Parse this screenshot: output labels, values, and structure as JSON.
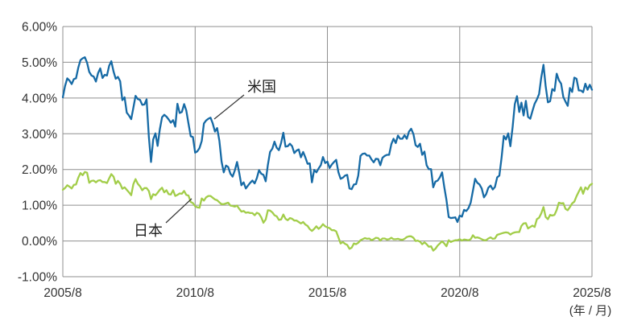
{
  "chart_data": {
    "type": "line",
    "title": "",
    "x_interval": "monthly",
    "x_range": [
      "2005/8",
      "2025/8"
    ],
    "x_ticks": [
      "2005/8",
      "2010/8",
      "2015/8",
      "2020/8",
      "2025/8"
    ],
    "x_axis_unit": "(年 / 月)",
    "y_ticks": [
      "6.00%",
      "5.00%",
      "4.00%",
      "3.00%",
      "2.00%",
      "1.00%",
      "0.00%",
      "-1.00%"
    ],
    "ylim": [
      -1,
      6
    ],
    "grid": true,
    "grid_color": "#8f8f8f",
    "series": [
      {
        "name": "米国",
        "id": "us",
        "color": "#166aa5",
        "values": [
          4.02,
          4.33,
          4.55,
          4.49,
          4.39,
          4.53,
          4.55,
          4.85,
          5.06,
          5.11,
          5.14,
          4.99,
          4.73,
          4.63,
          4.6,
          4.46,
          4.7,
          4.83,
          4.56,
          4.65,
          4.63,
          4.9,
          5.03,
          4.74,
          4.54,
          4.59,
          4.47,
          3.94,
          4.02,
          3.59,
          3.51,
          3.41,
          3.73,
          4.06,
          3.97,
          3.95,
          3.81,
          3.82,
          3.96,
          2.92,
          2.21,
          2.84,
          3.01,
          2.66,
          3.12,
          3.46,
          3.53,
          3.48,
          3.4,
          3.31,
          3.38,
          3.2,
          3.84,
          3.58,
          3.61,
          3.83,
          3.65,
          3.29,
          2.93,
          2.91,
          2.47,
          2.51,
          2.6,
          2.8,
          3.29,
          3.37,
          3.42,
          3.45,
          3.29,
          3.06,
          3.16,
          2.8,
          2.22,
          1.92,
          2.11,
          2.07,
          1.88,
          1.8,
          1.97,
          2.21,
          1.91,
          1.56,
          1.64,
          1.47,
          1.55,
          1.63,
          1.69,
          1.61,
          1.76,
          1.98,
          1.88,
          1.85,
          1.67,
          2.13,
          2.49,
          2.58,
          2.78,
          2.61,
          2.54,
          2.74,
          3.03,
          2.64,
          2.65,
          2.72,
          2.65,
          2.46,
          2.53,
          2.56,
          2.34,
          2.49,
          2.34,
          2.16,
          2.17,
          1.64,
          1.99,
          1.92,
          2.03,
          2.12,
          2.35,
          2.18,
          2.22,
          2.04,
          2.14,
          2.21,
          2.27,
          1.92,
          1.74,
          1.77,
          1.83,
          1.85,
          1.47,
          1.45,
          1.58,
          1.59,
          1.83,
          2.38,
          2.44,
          2.45,
          2.39,
          2.39,
          2.28,
          2.2,
          2.3,
          2.29,
          2.12,
          2.33,
          2.38,
          2.41,
          2.41,
          2.71,
          2.86,
          2.74,
          2.95,
          2.86,
          2.86,
          2.96,
          2.86,
          3.06,
          3.14,
          2.99,
          2.68,
          2.63,
          2.72,
          2.41,
          2.5,
          2.12,
          2.01,
          2.01,
          1.5,
          1.66,
          1.69,
          1.78,
          1.92,
          1.51,
          1.15,
          0.67,
          0.64,
          0.65,
          0.66,
          0.53,
          0.71,
          0.68,
          0.87,
          0.84,
          0.92,
          1.07,
          1.41,
          1.74,
          1.63,
          1.58,
          1.47,
          1.22,
          1.31,
          1.49,
          1.55,
          1.44,
          1.51,
          1.78,
          1.83,
          2.34,
          2.94,
          2.84,
          3.01,
          2.65,
          3.19,
          3.83,
          4.05,
          3.61,
          3.87,
          3.51,
          3.92,
          3.47,
          3.42,
          3.64,
          3.84,
          3.96,
          4.11,
          4.57,
          4.93,
          4.33,
          3.88,
          3.91,
          4.25,
          4.2,
          4.68,
          4.5,
          4.4,
          4.03,
          3.9,
          3.78,
          4.28,
          4.17,
          4.57,
          4.54,
          4.21,
          4.21,
          4.16,
          4.4,
          4.23,
          4.37,
          4.23
        ]
      },
      {
        "name": "日本",
        "id": "japan",
        "color": "#a2cd49",
        "values": [
          1.43,
          1.48,
          1.56,
          1.52,
          1.47,
          1.57,
          1.58,
          1.77,
          1.9,
          1.84,
          1.93,
          1.91,
          1.63,
          1.68,
          1.69,
          1.64,
          1.69,
          1.7,
          1.65,
          1.65,
          1.62,
          1.75,
          1.87,
          1.8,
          1.6,
          1.68,
          1.6,
          1.46,
          1.5,
          1.43,
          1.36,
          1.28,
          1.59,
          1.73,
          1.6,
          1.53,
          1.42,
          1.48,
          1.48,
          1.4,
          1.17,
          1.31,
          1.28,
          1.35,
          1.43,
          1.49,
          1.36,
          1.42,
          1.31,
          1.3,
          1.42,
          1.26,
          1.29,
          1.33,
          1.32,
          1.4,
          1.29,
          1.27,
          1.09,
          1.06,
          0.97,
          0.94,
          0.93,
          1.19,
          1.13,
          1.22,
          1.26,
          1.26,
          1.21,
          1.16,
          1.14,
          1.08,
          1.03,
          1.03,
          1.05,
          1.07,
          0.99,
          0.98,
          0.96,
          0.99,
          0.9,
          0.82,
          0.84,
          0.79,
          0.8,
          0.78,
          0.78,
          0.72,
          0.79,
          0.76,
          0.66,
          0.51,
          0.6,
          0.86,
          0.85,
          0.8,
          0.72,
          0.69,
          0.59,
          0.6,
          0.74,
          0.62,
          0.58,
          0.64,
          0.62,
          0.57,
          0.57,
          0.53,
          0.49,
          0.53,
          0.46,
          0.42,
          0.33,
          0.28,
          0.34,
          0.41,
          0.34,
          0.39,
          0.47,
          0.41,
          0.38,
          0.36,
          0.3,
          0.3,
          0.27,
          0.1,
          -0.07,
          -0.03,
          -0.08,
          -0.11,
          -0.22,
          -0.19,
          -0.07,
          -0.09,
          -0.05,
          0.02,
          0.05,
          0.08,
          0.06,
          0.07,
          0.02,
          0.05,
          0.09,
          0.08,
          0.01,
          0.07,
          0.07,
          0.04,
          0.05,
          0.09,
          0.05,
          0.05,
          0.06,
          0.04,
          0.03,
          0.06,
          0.11,
          0.13,
          0.13,
          0.09,
          0.0,
          0.01,
          -0.02,
          -0.09,
          -0.04,
          -0.09,
          -0.16,
          -0.15,
          -0.27,
          -0.22,
          -0.13,
          -0.07,
          -0.01,
          -0.07,
          -0.15,
          0.02,
          -0.03,
          0.0,
          0.02,
          0.02,
          0.05,
          0.01,
          0.04,
          0.03,
          0.02,
          0.05,
          0.16,
          0.09,
          0.1,
          0.08,
          0.05,
          0.02,
          0.02,
          0.07,
          0.1,
          0.06,
          0.07,
          0.17,
          0.19,
          0.21,
          0.23,
          0.24,
          0.23,
          0.18,
          0.22,
          0.24,
          0.25,
          0.25,
          0.42,
          0.49,
          0.5,
          0.35,
          0.39,
          0.43,
          0.39,
          0.61,
          0.65,
          0.77,
          0.95,
          0.67,
          0.61,
          0.73,
          0.71,
          0.73,
          0.87,
          1.07,
          1.05,
          1.06,
          0.9,
          0.86,
          0.95,
          1.05,
          1.1,
          1.25,
          1.38,
          1.5,
          1.32,
          1.5,
          1.44,
          1.56,
          1.6
        ]
      }
    ]
  }
}
